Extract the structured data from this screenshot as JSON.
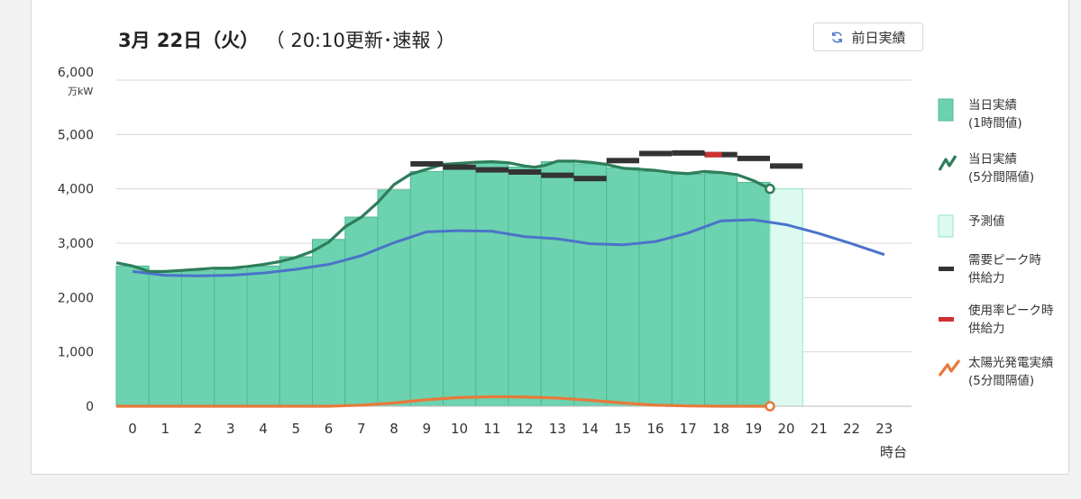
{
  "header": {
    "date": "3月 22日（火）",
    "update": "（ 20:10更新･速報 ）",
    "prev_button_label": "前日実績"
  },
  "chart_data": {
    "type": "bar",
    "ylabel": "万kW",
    "xlabel": "時台",
    "ylim": [
      0,
      6000
    ],
    "yticks": [
      "0",
      "1,000",
      "2,000",
      "3,000",
      "4,000",
      "5,000",
      "6,000"
    ],
    "categories": [
      "0",
      "1",
      "2",
      "3",
      "4",
      "5",
      "6",
      "7",
      "8",
      "9",
      "10",
      "11",
      "12",
      "13",
      "14",
      "15",
      "16",
      "17",
      "18",
      "19",
      "20",
      "21",
      "22",
      "23"
    ],
    "hourly_actual": [
      2580,
      2480,
      2490,
      2520,
      2580,
      2750,
      3070,
      3480,
      3980,
      4320,
      4440,
      4470,
      4400,
      4500,
      4460,
      4390,
      4320,
      4270,
      4280,
      4120
    ],
    "forecast_bar": {
      "hour": 20,
      "value": 4000
    },
    "forecast_line": {
      "hours": [
        0,
        1,
        2,
        3,
        4,
        5,
        6,
        7,
        8,
        9,
        10,
        11,
        12,
        13,
        14,
        15,
        16,
        17,
        18,
        19,
        20,
        21,
        22,
        23
      ],
      "values": [
        2480,
        2410,
        2400,
        2410,
        2450,
        2520,
        2610,
        2770,
        3010,
        3210,
        3230,
        3220,
        3120,
        3080,
        2990,
        2970,
        3030,
        3190,
        3410,
        3430,
        3340,
        3180,
        2990,
        2790
      ]
    },
    "actual_5min": {
      "hours": [
        -0.5,
        0,
        0.5,
        1,
        1.5,
        2,
        2.5,
        3,
        3.5,
        4,
        4.5,
        5,
        5.5,
        6,
        6.5,
        7,
        7.5,
        8,
        8.5,
        9,
        9.5,
        10,
        10.5,
        11,
        11.5,
        12,
        12.3,
        12.6,
        13,
        13.5,
        14,
        14.5,
        15,
        15.5,
        16,
        16.5,
        17,
        17.5,
        18,
        18.5,
        19,
        19.5
      ],
      "values": [
        2640,
        2580,
        2480,
        2480,
        2500,
        2520,
        2540,
        2540,
        2570,
        2610,
        2660,
        2740,
        2850,
        3020,
        3300,
        3480,
        3750,
        4080,
        4270,
        4360,
        4450,
        4470,
        4490,
        4500,
        4480,
        4420,
        4400,
        4430,
        4510,
        4510,
        4490,
        4450,
        4380,
        4360,
        4340,
        4300,
        4280,
        4320,
        4300,
        4260,
        4150,
        4000
      ]
    },
    "peak_supply_demand": [
      {
        "hour": 9,
        "value": 4460
      },
      {
        "hour": 10,
        "value": 4400
      },
      {
        "hour": 11,
        "value": 4350
      },
      {
        "hour": 12,
        "value": 4310
      },
      {
        "hour": 13,
        "value": 4250
      },
      {
        "hour": 14,
        "value": 4190
      },
      {
        "hour": 15,
        "value": 4520
      },
      {
        "hour": 16,
        "value": 4650
      },
      {
        "hour": 17,
        "value": 4660
      },
      {
        "hour": 18,
        "value": 4630
      },
      {
        "hour": 19,
        "value": 4560
      },
      {
        "hour": 20,
        "value": 4420
      }
    ],
    "peak_supply_usage_rate": [
      {
        "hour": 18,
        "value": 4630
      }
    ],
    "solar_5min": {
      "hours": [
        -0.5,
        6,
        7,
        8,
        9,
        10,
        11,
        12,
        13,
        14,
        15,
        16,
        17,
        18,
        19,
        19.5
      ],
      "values": [
        0,
        0,
        20,
        60,
        120,
        160,
        175,
        170,
        150,
        110,
        60,
        20,
        5,
        0,
        0,
        0
      ]
    },
    "colors": {
      "hourly_actual": "#6dd2b0",
      "hourly_actual_stroke": "#4fb892",
      "forecast_bar": "#dcfaf0",
      "forecast_bar_stroke": "#8fe6c6",
      "actual_5min": "#2e7d5a",
      "forecast_line": "#4a73c9",
      "peak_demand": "#333333",
      "peak_usage": "#d03030",
      "solar": "#e8793a",
      "grid": "#d8d8d8"
    }
  },
  "legend": [
    {
      "icon": "green-bar-icon",
      "label1": "当日実績",
      "label2": "(1時間値)"
    },
    {
      "icon": "green-line-icon",
      "label1": "当日実績",
      "label2": "(5分間隔値)"
    },
    {
      "icon": "light-green-bar-icon",
      "label1": "予測値",
      "label2": ""
    },
    {
      "icon": "black-dash-icon",
      "label1": "需要ピーク時",
      "label2": "供給力"
    },
    {
      "icon": "red-dash-icon",
      "label1": "使用率ピーク時",
      "label2": "供給力"
    },
    {
      "icon": "orange-line-icon",
      "label1": "太陽光発電実績",
      "label2": "(5分間隔値)"
    }
  ]
}
